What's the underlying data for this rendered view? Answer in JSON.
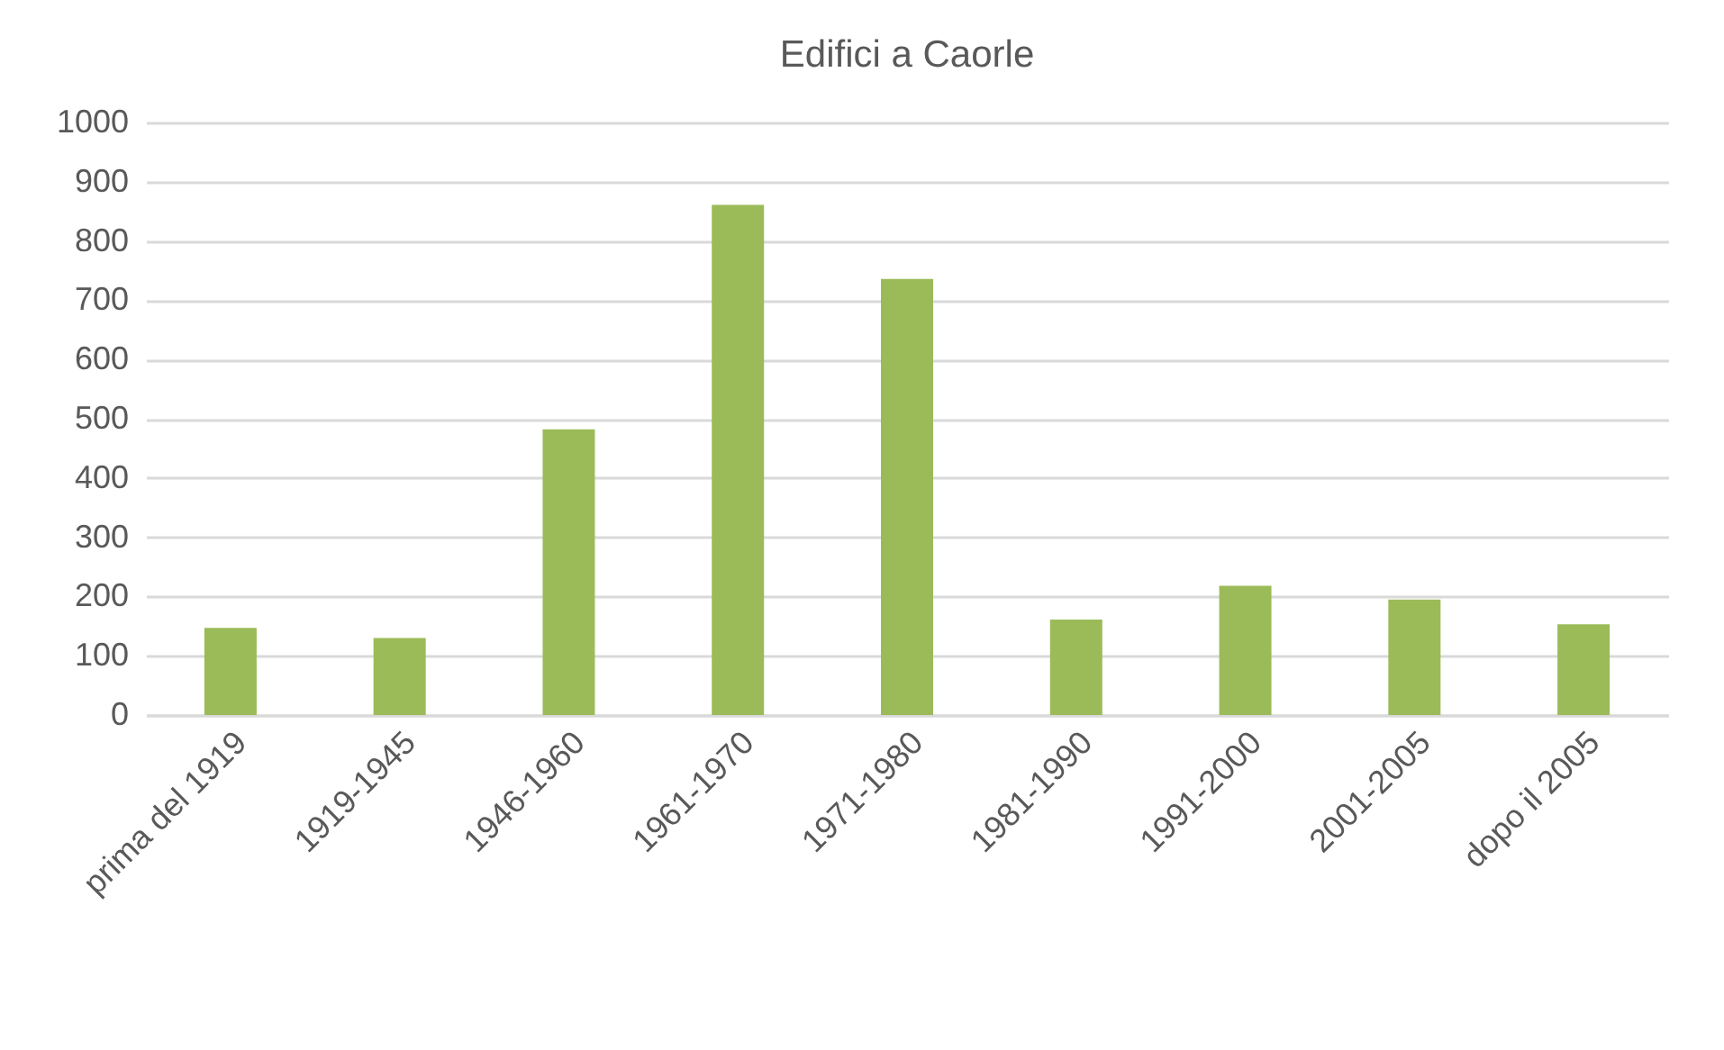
{
  "chart_data": {
    "type": "bar",
    "title": "Edifici a Caorle",
    "categories": [
      "prima del 1919",
      "1919-1945",
      "1946-1960",
      "1961-1970",
      "1971-1980",
      "1981-1990",
      "1991-2000",
      "2001-2005",
      "dopo il 2005"
    ],
    "values": [
      147,
      130,
      482,
      861,
      736,
      161,
      218,
      195,
      153
    ],
    "color": "#9bbb59",
    "ylim": [
      0,
      1000
    ],
    "yticks": [
      0,
      100,
      200,
      300,
      400,
      500,
      600,
      700,
      800,
      900,
      1000
    ],
    "grid": true
  }
}
